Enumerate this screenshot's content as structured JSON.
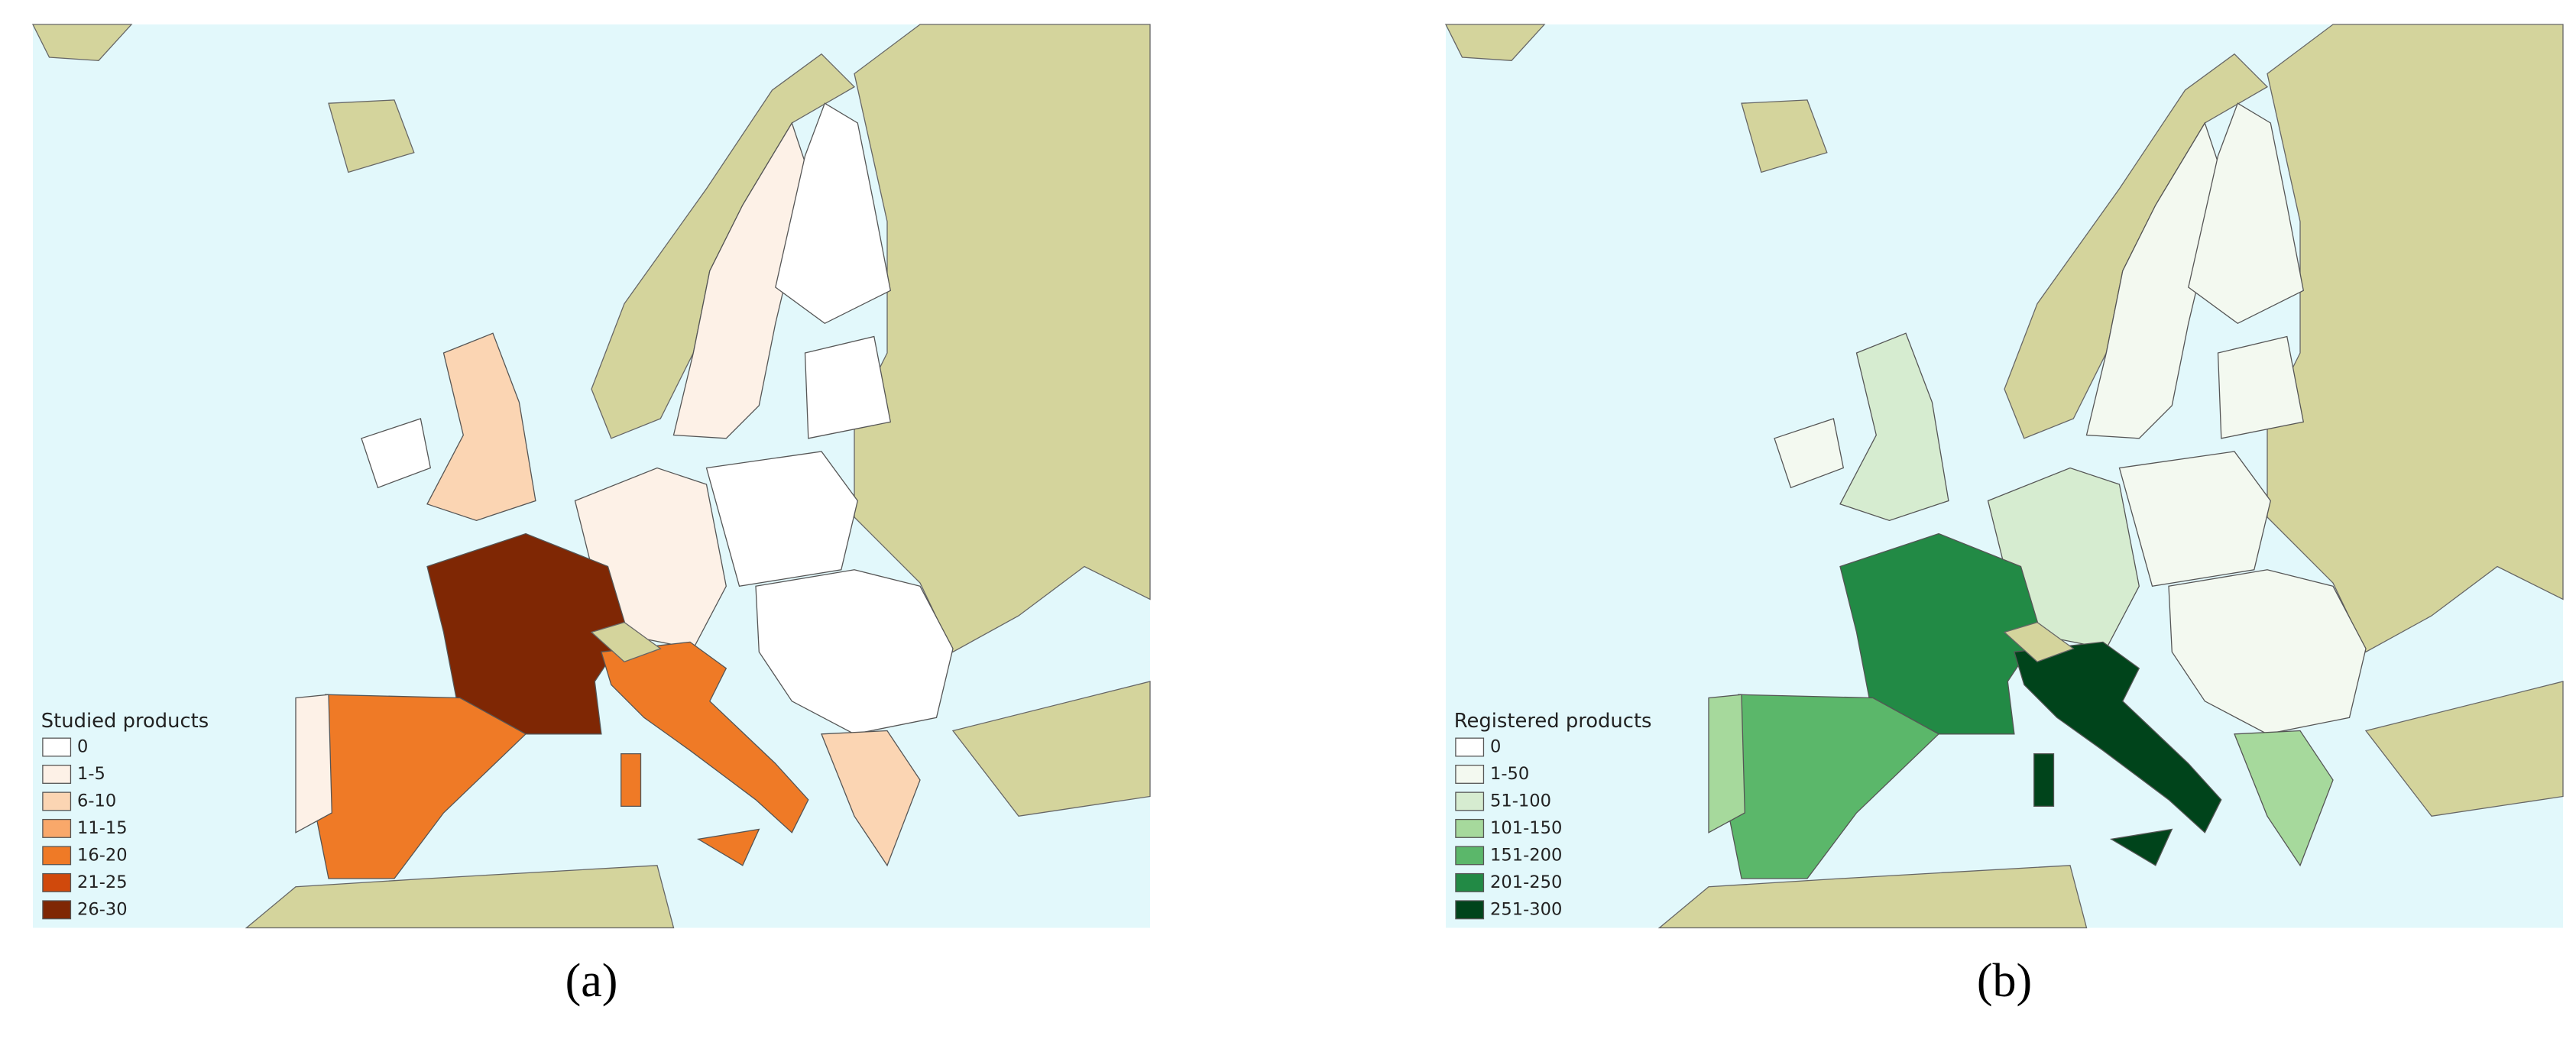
{
  "panels": [
    {
      "caption": "(a)",
      "legend": {
        "title": "Studied products",
        "classes": [
          {
            "label": "0",
            "color": "#ffffff"
          },
          {
            "label": "1-5",
            "color": "#fdf1e7"
          },
          {
            "label": "6-10",
            "color": "#fbd5b3"
          },
          {
            "label": "11-15",
            "color": "#f9a86a"
          },
          {
            "label": "16-20",
            "color": "#ef7a26"
          },
          {
            "label": "21-25",
            "color": "#d0490c"
          },
          {
            "label": "26-30",
            "color": "#7f2704"
          }
        ]
      }
    },
    {
      "caption": "(b)",
      "legend": {
        "title": "Registered products",
        "classes": [
          {
            "label": "0",
            "color": "#ffffff"
          },
          {
            "label": "1-50",
            "color": "#f3f9f0"
          },
          {
            "label": "51-100",
            "color": "#d6ecd0"
          },
          {
            "label": "101-150",
            "color": "#a6d99c"
          },
          {
            "label": "151-200",
            "color": "#5bb76a"
          },
          {
            "label": "201-250",
            "color": "#228a45"
          },
          {
            "label": "251-300",
            "color": "#00441b"
          }
        ]
      }
    }
  ]
}
